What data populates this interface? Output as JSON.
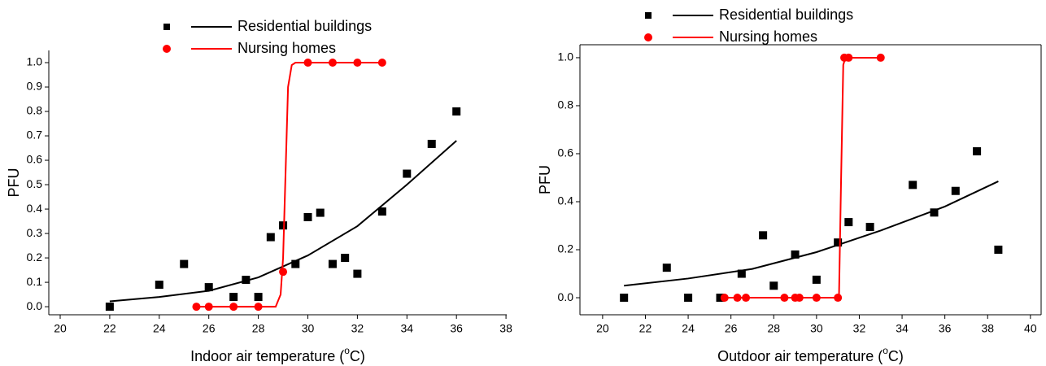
{
  "chart_data": [
    {
      "type": "scatter",
      "x_label": [
        "Indoor air temperature (",
        "o",
        "C)"
      ],
      "y_label": "PFU",
      "xlim": [
        19.54,
        38.03
      ],
      "ylim": [
        -0.033,
        1.05
      ],
      "xticks": [
        20,
        22,
        24,
        26,
        28,
        30,
        32,
        34,
        36,
        38
      ],
      "yticks": [
        {
          "value": 0,
          "label": "0.0"
        },
        0.1,
        0.2,
        0.3,
        0.4,
        0.5,
        0.6,
        0.7,
        0.8,
        0.9,
        {
          "value": 1,
          "label": "1.0"
        }
      ],
      "frame": false,
      "series": [
        {
          "name": "Residential buildings",
          "color": "#000000",
          "marker": "square",
          "x": [
            22,
            24,
            25,
            26,
            27,
            27.5,
            28,
            28.5,
            29,
            29.5,
            30,
            30.5,
            31,
            31.5,
            32,
            33,
            34,
            35,
            36
          ],
          "values": [
            0,
            0.09,
            0.175,
            0.08,
            0.04,
            0.11,
            0.04,
            0.285,
            0.333,
            0.175,
            0.367,
            0.385,
            0.175,
            0.2,
            0.135,
            0.39,
            0.545,
            0.667,
            0.8
          ],
          "fit_x": [
            22,
            24,
            26,
            28,
            30,
            32,
            34,
            36
          ],
          "fit_values": [
            0.022,
            0.04,
            0.065,
            0.12,
            0.21,
            0.33,
            0.5,
            0.68
          ]
        },
        {
          "name": "Nursing homes",
          "color": "#ff0000",
          "marker": "circle",
          "x": [
            25.5,
            26,
            27,
            28,
            29,
            30,
            31,
            32,
            33
          ],
          "values": [
            0,
            0,
            0,
            0,
            0.143,
            1,
            1,
            1,
            1
          ],
          "fit_x": [
            25.5,
            28.7,
            28.9,
            29.0,
            29.1,
            29.2,
            29.35,
            29.5,
            33
          ],
          "fit_values": [
            0,
            0,
            0.05,
            0.2,
            0.55,
            0.9,
            0.99,
            1,
            1
          ]
        }
      ]
    },
    {
      "type": "scatter",
      "x_label": [
        "Outdoor air temperature (",
        "o",
        "C)"
      ],
      "y_label": "PFU",
      "xlim": [
        18.94,
        40.5
      ],
      "ylim": [
        -0.071,
        1.054
      ],
      "xticks": [
        20,
        22,
        24,
        26,
        28,
        30,
        32,
        34,
        36,
        38,
        40
      ],
      "yticks": [
        {
          "value": 0,
          "label": "0.0"
        },
        0.2,
        0.4,
        0.6,
        0.8,
        {
          "value": 1,
          "label": "1.0"
        }
      ],
      "frame": true,
      "series": [
        {
          "name": "Residential buildings",
          "color": "#000000",
          "marker": "square",
          "x": [
            21,
            23,
            24,
            25.5,
            26.5,
            27.5,
            28,
            29,
            30,
            31,
            31.5,
            32.5,
            34.5,
            35.5,
            36.5,
            37.5,
            38.5
          ],
          "values": [
            0,
            0.125,
            0,
            0,
            0.1,
            0.26,
            0.05,
            0.18,
            0.075,
            0.23,
            0.315,
            0.295,
            0.47,
            0.355,
            0.445,
            0.61,
            0.2
          ],
          "fit_x": [
            21,
            24,
            27,
            30,
            33,
            36,
            38.5
          ],
          "fit_values": [
            0.05,
            0.08,
            0.12,
            0.19,
            0.28,
            0.38,
            0.485
          ]
        },
        {
          "name": "Nursing homes",
          "color": "#ff0000",
          "marker": "circle",
          "x": [
            25.7,
            26.3,
            26.7,
            28.5,
            29,
            29.2,
            30,
            31,
            31.3,
            31.5,
            33
          ],
          "values": [
            0,
            0,
            0,
            0,
            0,
            0,
            0,
            0,
            1,
            1,
            1
          ],
          "fit_x": [
            25.7,
            31.05,
            31.15,
            31.25,
            31.35,
            33
          ],
          "fit_values": [
            0,
            0,
            0.5,
            0.97,
            1,
            1
          ]
        }
      ]
    }
  ]
}
